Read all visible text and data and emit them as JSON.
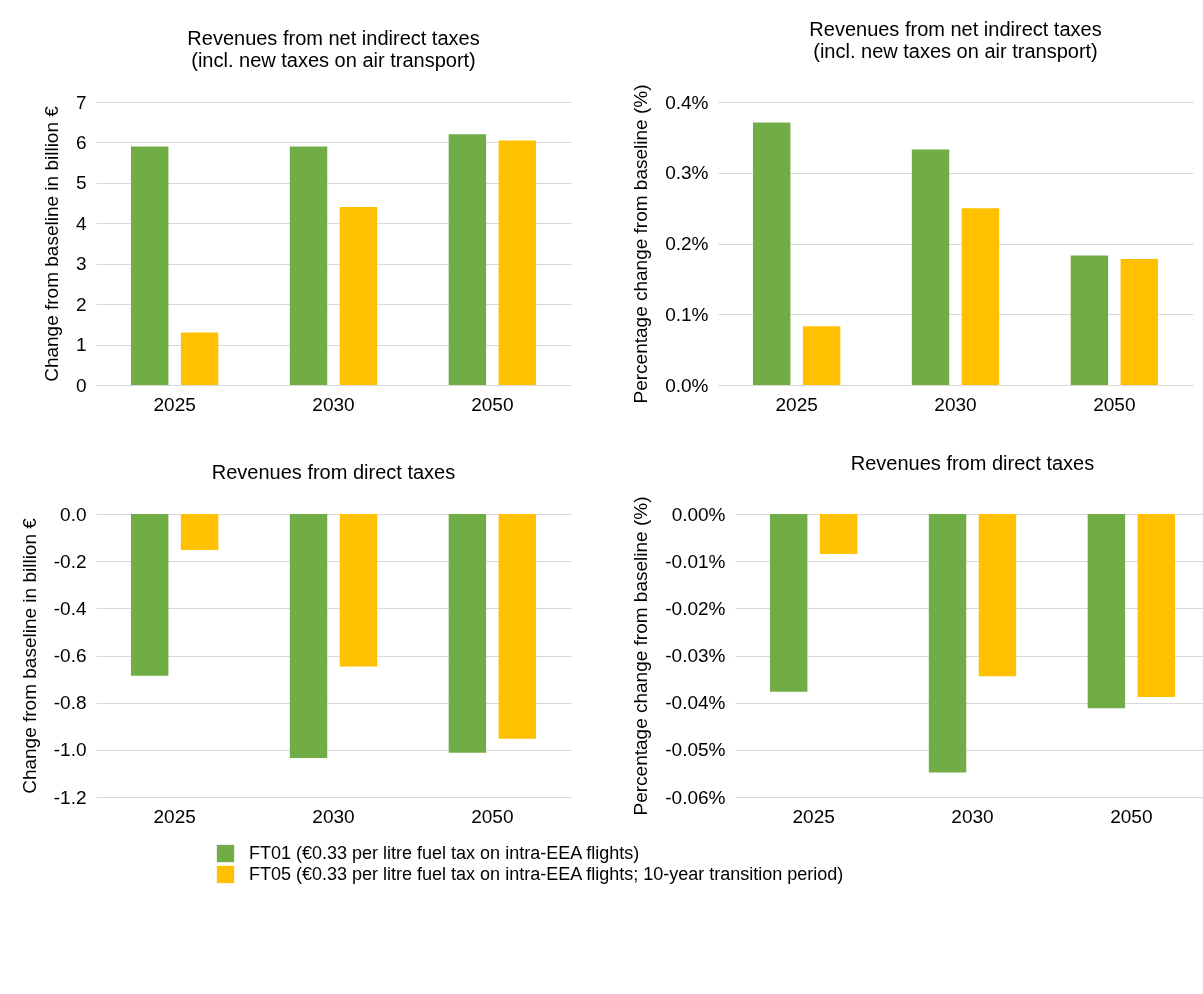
{
  "chart_data": [
    {
      "type": "bar",
      "title": "Revenues from net indirect taxes\n(incl. new taxes on air transport)",
      "ylabel": "Change from baseline in billion €",
      "categories": [
        "2025",
        "2030",
        "2050"
      ],
      "series": [
        {
          "name": "FT01 (€0.33 per litre fuel tax on intra-EEA flights)",
          "color": "#70ad47",
          "values": [
            5.9,
            5.9,
            6.2
          ]
        },
        {
          "name": "FT05 (€0.33 per litre fuel tax on intra-EEA flights; 10-year transition period)",
          "color": "#ffc000",
          "values": [
            1.3,
            4.4,
            6.05
          ]
        }
      ],
      "ylim": [
        0,
        7
      ],
      "yticks": [
        0,
        1,
        2,
        3,
        4,
        5,
        6,
        7
      ],
      "grid": "y",
      "legend": "bottom"
    },
    {
      "type": "bar",
      "title": "Revenues from net indirect taxes\n(incl. new taxes on air transport)",
      "ylabel": "Percentage change from baseline (%)",
      "categories": [
        "2025",
        "2030",
        "2050"
      ],
      "series": [
        {
          "color": "#70ad47",
          "values": [
            0.371,
            0.333,
            0.183
          ]
        },
        {
          "color": "#ffc000",
          "values": [
            0.083,
            0.25,
            0.178
          ]
        }
      ],
      "ylim": [
        0,
        0.4
      ],
      "yticks": [
        {
          "value": 0,
          "label": "0.0%"
        },
        {
          "value": 0.1,
          "label": "0.1%"
        },
        {
          "value": 0.2,
          "label": "0.2%"
        },
        {
          "value": 0.3,
          "label": "0.3%"
        },
        {
          "value": 0.4,
          "label": "0.4%"
        }
      ],
      "grid": "y"
    },
    {
      "type": "bar",
      "title": "Revenues from direct taxes",
      "ylabel": "Change from baseline in billion €",
      "categories": [
        "2025",
        "2030",
        "2050"
      ],
      "series": [
        {
          "color": "#70ad47",
          "values": [
            -0.686,
            -1.035,
            -1.012
          ]
        },
        {
          "color": "#ffc000",
          "values": [
            -0.153,
            -0.647,
            -0.953
          ]
        }
      ],
      "ylim": [
        -1.2,
        0
      ],
      "yticks": [
        {
          "value": -1.2,
          "label": "-1.2"
        },
        {
          "value": -1,
          "label": "-1.0"
        },
        {
          "value": -0.8,
          "label": "-0.8"
        },
        {
          "value": -0.6,
          "label": "-0.6"
        },
        {
          "value": -0.4,
          "label": "-0.4"
        },
        {
          "value": -0.2,
          "label": "-0.2"
        },
        {
          "value": 0,
          "label": "0.0"
        }
      ],
      "grid": "y"
    },
    {
      "type": "bar",
      "title": "Revenues from direct taxes",
      "ylabel": "Percentage change from baseline (%)",
      "categories": [
        "2025",
        "2030",
        "2050"
      ],
      "series": [
        {
          "color": "#70ad47",
          "values": [
            -0.0377,
            -0.0548,
            -0.0412
          ]
        },
        {
          "color": "#ffc000",
          "values": [
            -0.0085,
            -0.0344,
            -0.0388
          ]
        }
      ],
      "ylim": [
        -0.06,
        0
      ],
      "yticks": [
        {
          "value": -0.06,
          "label": "-0.06%"
        },
        {
          "value": -0.05,
          "label": "-0.05%"
        },
        {
          "value": -0.04,
          "label": "-0.04%"
        },
        {
          "value": -0.03,
          "label": "-0.03%"
        },
        {
          "value": -0.02,
          "label": "-0.02%"
        },
        {
          "value": -0.01,
          "label": "-0.01%"
        },
        {
          "value": 0,
          "label": "0.00%"
        }
      ],
      "grid": "y"
    }
  ]
}
